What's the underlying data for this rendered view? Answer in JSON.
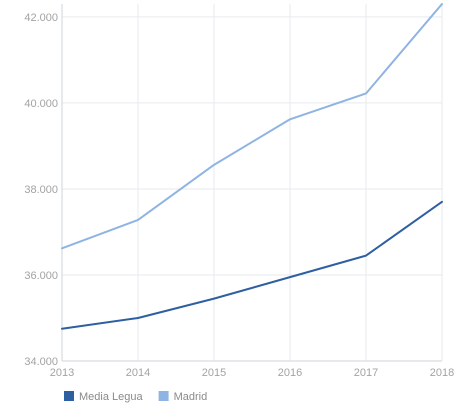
{
  "chart_data": {
    "type": "line",
    "title": "",
    "xlabel": "",
    "ylabel": "",
    "x": [
      2013,
      2014,
      2015,
      2016,
      2017,
      2018
    ],
    "x_tick_labels": [
      "2013",
      "2014",
      "2015",
      "2016",
      "2017",
      "2018"
    ],
    "ylim": [
      34000,
      42300
    ],
    "y_ticks": [
      34000,
      36000,
      38000,
      40000,
      42000
    ],
    "y_tick_labels": [
      "34.000",
      "36.000",
      "38.000",
      "40.000",
      "42.000"
    ],
    "grid": true,
    "legend_position": "bottom-left",
    "series": [
      {
        "name": "Media Legua",
        "color": "#2e5fa0",
        "values": [
          34750,
          35000,
          35450,
          35950,
          36450,
          37700
        ]
      },
      {
        "name": "Madrid",
        "color": "#8fb4e3",
        "values": [
          36620,
          37280,
          38560,
          39620,
          40220,
          42300
        ]
      }
    ]
  }
}
